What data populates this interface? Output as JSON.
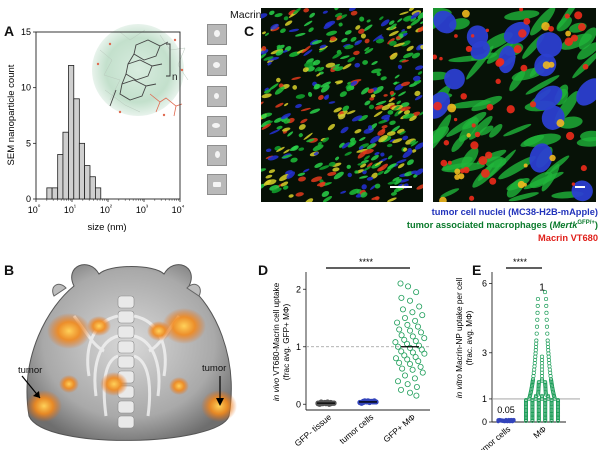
{
  "panels": {
    "a": {
      "letter": "A",
      "title": "Macrin-NP"
    },
    "b": {
      "letter": "B",
      "label_tumor_left": "tumor",
      "label_tumor_right": "tumor"
    },
    "c": {
      "letter": "C"
    },
    "d": {
      "letter": "D"
    },
    "e": {
      "letter": "E"
    }
  },
  "legend_c": {
    "nuclei": "tumor cell nuclei (MC38-H2B-mApple)",
    "macrophages_prefix": "tumor associated macrophages (",
    "macrophages_gene": "Mertk",
    "macrophages_sup": "GFP/+",
    "macrophages_suffix": ")",
    "macrin": "Macrin VT680",
    "colors": {
      "nuclei": "#2233bb",
      "macrophages": "#0a7a2c",
      "macrin": "#e0201b"
    }
  },
  "structure_label_n": "n",
  "chart_data": [
    {
      "id": "A",
      "type": "bar",
      "title": "",
      "xlabel": "size (nm)",
      "ylabel": "SEM nanoparticle count",
      "xscale": "log",
      "xlim": [
        1,
        10000
      ],
      "ylim": [
        0,
        15
      ],
      "xticks": [
        "10⁰",
        "10¹",
        "10²",
        "10³",
        "10⁴"
      ],
      "yticks": [
        "0",
        "5",
        "10",
        "15"
      ],
      "bins": [
        {
          "from": 2.0,
          "to": 2.8,
          "count": 1
        },
        {
          "from": 2.8,
          "to": 4.0,
          "count": 1
        },
        {
          "from": 4.0,
          "to": 5.6,
          "count": 4
        },
        {
          "from": 5.6,
          "to": 8.0,
          "count": 6
        },
        {
          "from": 8.0,
          "to": 11.2,
          "count": 12
        },
        {
          "from": 11.2,
          "to": 16.0,
          "count": 9
        },
        {
          "from": 16.0,
          "to": 22.4,
          "count": 5
        },
        {
          "from": 22.4,
          "to": 31.6,
          "count": 3
        },
        {
          "from": 31.6,
          "to": 44.7,
          "count": 2
        },
        {
          "from": 44.7,
          "to": 63.0,
          "count": 1
        }
      ]
    },
    {
      "id": "D",
      "type": "scatter",
      "ylabel_italic": "in vivo",
      "ylabel_rest": " VT680-Macrin cell uptake",
      "ylabel_line2": "(frac avg. GFP+ MΦ)",
      "categories": [
        "GFP- tissue",
        "tumor cells",
        "GFP+ MΦ"
      ],
      "yticks": [
        "0",
        "1",
        "2"
      ],
      "ylim": [
        -0.1,
        2.3
      ],
      "reference_line": 1,
      "significance": "****",
      "groups": [
        {
          "name": "GFP- tissue",
          "color": "#555555",
          "mean": 0.02,
          "values": [
            0.01,
            0.02,
            0.03,
            0.0,
            0.01,
            0.02,
            0.04,
            0.03,
            0.02,
            0.01,
            0.0,
            0.02,
            0.03,
            0.01,
            0.02,
            0.03,
            0.02,
            0.01,
            0.04,
            0.02
          ]
        },
        {
          "name": "tumor cells",
          "color": "#3344bb",
          "mean": 0.04,
          "values": [
            0.03,
            0.05,
            0.04,
            0.02,
            0.06,
            0.04,
            0.05,
            0.03,
            0.04,
            0.06,
            0.05,
            0.03,
            0.04,
            0.05,
            0.02,
            0.04,
            0.06,
            0.03,
            0.05,
            0.04
          ]
        },
        {
          "name": "GFP+ MΦ",
          "color": "#1e9e5a",
          "mean": 1.0,
          "values": [
            2.1,
            2.05,
            1.95,
            1.85,
            1.8,
            1.7,
            1.65,
            1.6,
            1.55,
            1.5,
            1.45,
            1.42,
            1.38,
            1.35,
            1.3,
            1.28,
            1.25,
            1.2,
            1.18,
            1.15,
            1.12,
            1.1,
            1.08,
            1.05,
            1.02,
            1.0,
            0.98,
            0.95,
            0.92,
            0.9,
            0.88,
            0.85,
            0.82,
            0.8,
            0.78,
            0.75,
            0.72,
            0.7,
            0.65,
            0.62,
            0.6,
            0.55,
            0.5,
            0.45,
            0.4,
            0.35,
            0.3,
            0.25,
            0.2,
            0.15
          ]
        }
      ]
    },
    {
      "id": "E",
      "type": "scatter",
      "ylabel_italic": "in vitro",
      "ylabel_rest": " Macrin-NP uptake per cell",
      "ylabel_line2": "(frac. avg. MΦ)",
      "categories": [
        "tumor cells",
        "MΦ"
      ],
      "yticks": [
        "0",
        "1",
        "3",
        "6"
      ],
      "ylim": [
        0,
        6.5
      ],
      "reference_line": 1,
      "significance": "****",
      "groups": [
        {
          "name": "tumor cells",
          "color": "#3344bb",
          "mean": 0.05,
          "mean_label": "0.05"
        },
        {
          "name": "MΦ",
          "color": "#1e9e5a",
          "mean": 1,
          "mean_label": "1"
        }
      ]
    }
  ]
}
